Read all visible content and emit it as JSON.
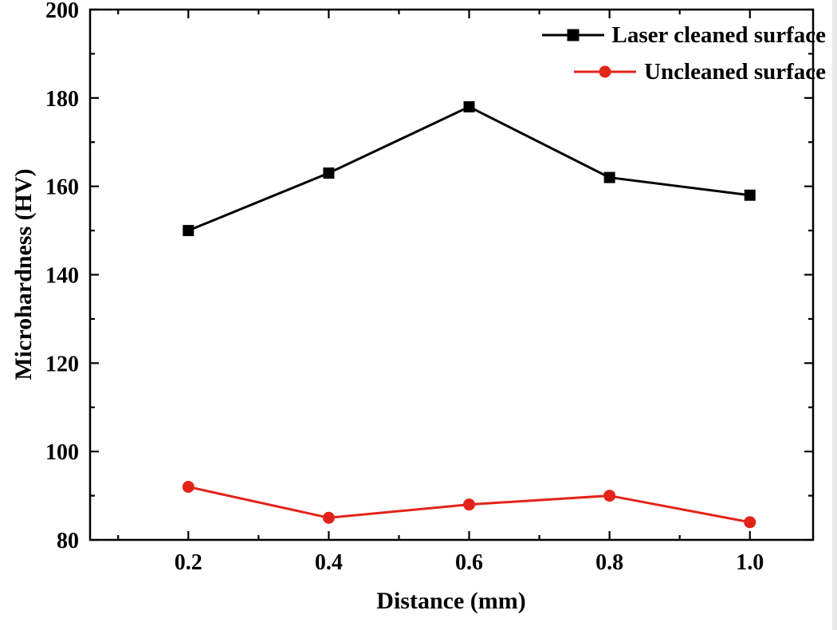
{
  "chart_data": {
    "type": "line",
    "title": "",
    "xlabel": "Distance (mm)",
    "ylabel": "Microhardness (HV)",
    "xlim": [
      0.06,
      1.09
    ],
    "ylim": [
      80,
      200
    ],
    "grid": false,
    "legend_position": "top-right-inside",
    "frame_color": "#000000",
    "background_color": "#ffffff",
    "xticks": {
      "major": [
        0.2,
        0.4,
        0.6,
        0.8,
        1.0
      ],
      "labels": [
        "0.2",
        "0.4",
        "0.6",
        "0.8",
        "1.0"
      ],
      "minor": [
        0.1,
        0.3,
        0.5,
        0.7,
        0.9
      ]
    },
    "yticks": {
      "major": [
        80,
        100,
        120,
        140,
        160,
        180,
        200
      ],
      "labels": [
        "80",
        "100",
        "120",
        "140",
        "160",
        "180",
        "200"
      ],
      "minor": [
        90,
        110,
        130,
        150,
        170,
        190
      ]
    },
    "x": [
      0.2,
      0.4,
      0.6,
      0.8,
      1.0
    ],
    "series": [
      {
        "name": "Laser cleaned surface",
        "color": "#000000",
        "marker": "square",
        "values": [
          150,
          163,
          178,
          162,
          158
        ]
      },
      {
        "name": "Uncleaned surface",
        "color": "#e2231a",
        "marker": "circle",
        "values": [
          92,
          85,
          88,
          90,
          84
        ]
      }
    ]
  }
}
